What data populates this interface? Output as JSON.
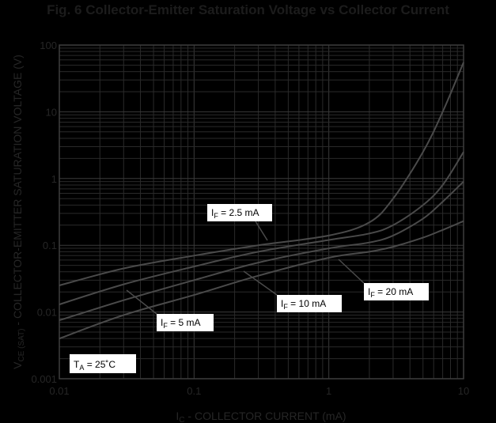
{
  "chart_data": {
    "type": "line",
    "title": "Fig. 6 Collector-Emitter Saturation Voltage vs Collector Current",
    "xlabel_main": "I",
    "xlabel_sub": "C",
    "xlabel_rest": " - COLLECTOR CURRENT (mA)",
    "ylabel_main": "V",
    "ylabel_sub": "CE (SAT)",
    "ylabel_rest": " - COLLECTOR-EMITTER SATURATION VOLTAGE (V)",
    "x_scale": "log",
    "y_scale": "log",
    "xlim": [
      0.01,
      10
    ],
    "ylim": [
      0.001,
      100
    ],
    "x_ticks": [
      {
        "value": 0.01,
        "label": "0.01"
      },
      {
        "value": 0.1,
        "label": "0.1"
      },
      {
        "value": 1,
        "label": "1"
      },
      {
        "value": 10,
        "label": "10"
      }
    ],
    "y_ticks": [
      {
        "value": 0.001,
        "label": "0.001"
      },
      {
        "value": 0.01,
        "label": "0.01"
      },
      {
        "value": 0.1,
        "label": "0.1"
      },
      {
        "value": 1,
        "label": "1"
      },
      {
        "value": 10,
        "label": "10"
      },
      {
        "value": 100,
        "label": "100"
      }
    ],
    "grid": true,
    "series": [
      {
        "name": "I_F = 2.5 mA",
        "x": [
          0.01,
          0.03,
          0.1,
          0.3,
          1,
          2,
          3,
          5,
          7,
          10
        ],
        "y": [
          0.025,
          0.045,
          0.07,
          0.1,
          0.14,
          0.22,
          0.5,
          2.5,
          10,
          55
        ]
      },
      {
        "name": "I_F = 5 mA",
        "x": [
          0.01,
          0.03,
          0.1,
          0.3,
          1,
          2,
          3,
          5,
          7,
          10
        ],
        "y": [
          0.013,
          0.026,
          0.048,
          0.08,
          0.12,
          0.15,
          0.2,
          0.4,
          0.8,
          2.5
        ]
      },
      {
        "name": "I_F = 10 mA",
        "x": [
          0.01,
          0.03,
          0.1,
          0.3,
          1,
          2,
          3,
          5,
          7,
          10
        ],
        "y": [
          0.0075,
          0.015,
          0.03,
          0.055,
          0.09,
          0.11,
          0.14,
          0.25,
          0.45,
          0.9
        ]
      },
      {
        "name": "I_F = 20 mA",
        "x": [
          0.01,
          0.03,
          0.1,
          0.3,
          1,
          2,
          3,
          5,
          7,
          10
        ],
        "y": [
          0.004,
          0.009,
          0.018,
          0.035,
          0.065,
          0.08,
          0.095,
          0.13,
          0.17,
          0.23
        ]
      }
    ],
    "annotations": [
      {
        "main": "I",
        "sub": "F",
        "rest": " = 2.5 mA"
      },
      {
        "main": "I",
        "sub": "F",
        "rest": " = 5 mA"
      },
      {
        "main": "I",
        "sub": "F",
        "rest": " = 10 mA"
      },
      {
        "main": "I",
        "sub": "F",
        "rest": " = 20 mA"
      },
      {
        "main": "T",
        "sub": "A",
        "rest": " = 25˚C"
      }
    ]
  }
}
